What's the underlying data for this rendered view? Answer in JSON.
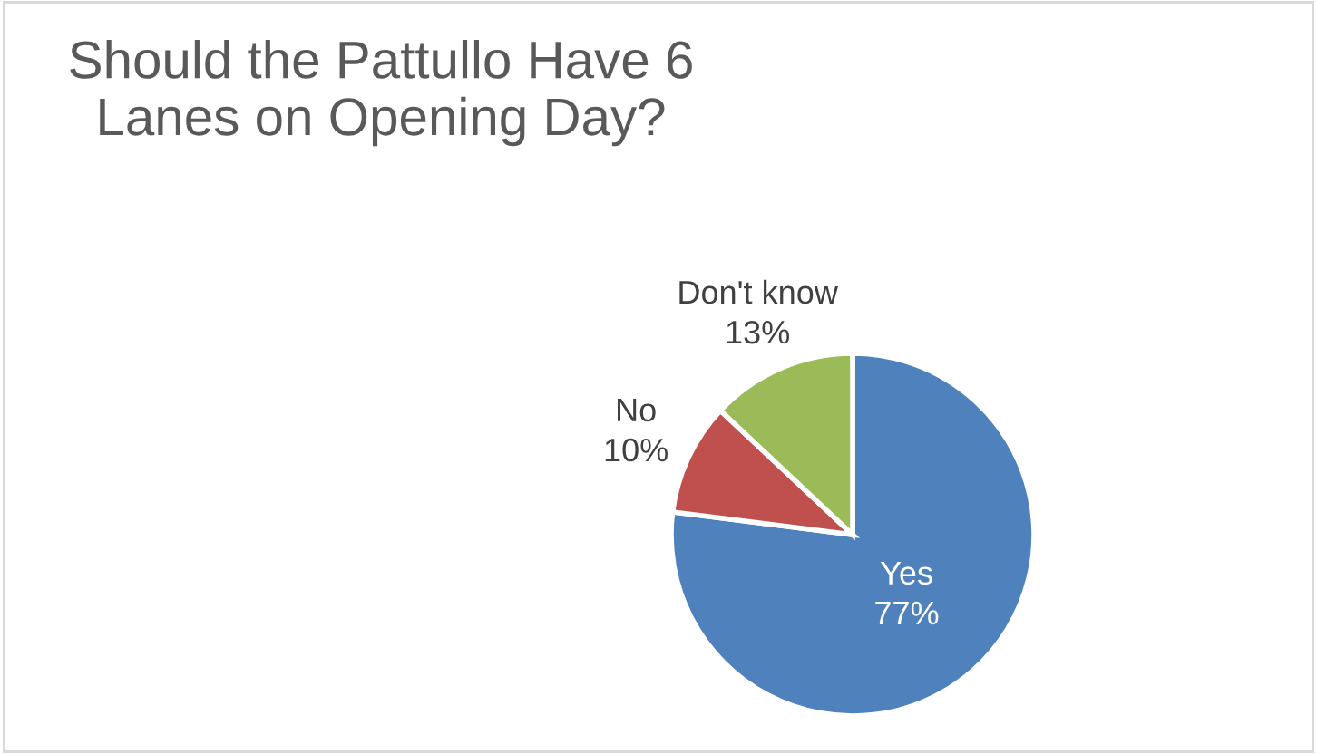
{
  "chart_data": {
    "type": "pie",
    "title": "Should the Pattullo Have 6 Lanes on Opening Day?",
    "categories": [
      "Yes",
      "No",
      "Don't know"
    ],
    "values": [
      77,
      10,
      13
    ],
    "colors": [
      "#4f81bd",
      "#c0504d",
      "#9bbb59"
    ],
    "value_labels": [
      "77%",
      "10%",
      "13%"
    ],
    "legend": false
  }
}
